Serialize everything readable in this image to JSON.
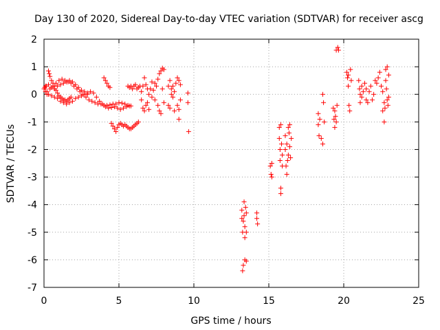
{
  "chart_data": {
    "type": "scatter",
    "title": "Day 130 of 2020, Sidereal Day-to-day VTEC variation (SDTVAR) for receiver ascg",
    "xlabel": "GPS time / hours",
    "ylabel": "SDTVAR / TECUs",
    "xlim": [
      0,
      25
    ],
    "ylim": [
      -7,
      2
    ],
    "xticks": [
      "0",
      "5",
      "10",
      "15",
      "20",
      "25"
    ],
    "yticks": [
      "-7",
      "-6",
      "-5",
      "-4",
      "-3",
      "-2",
      "-1",
      "0",
      "1",
      "2"
    ],
    "grid": true,
    "marker": "plus",
    "color": "#ff0000",
    "series": [
      {
        "name": "SDTVAR",
        "points": [
          [
            0.0,
            0.2
          ],
          [
            0.05,
            0.25
          ],
          [
            0.1,
            0.1
          ],
          [
            0.15,
            0.3
          ],
          [
            0.2,
            0.0
          ],
          [
            0.3,
            0.85
          ],
          [
            0.35,
            0.75
          ],
          [
            0.4,
            0.65
          ],
          [
            0.5,
            0.5
          ],
          [
            0.6,
            0.4
          ],
          [
            0.7,
            0.3
          ],
          [
            0.8,
            0.15
          ],
          [
            0.9,
            0.05
          ],
          [
            1.0,
            -0.05
          ],
          [
            1.1,
            -0.1
          ],
          [
            1.2,
            -0.15
          ],
          [
            1.3,
            -0.2
          ],
          [
            1.4,
            -0.2
          ],
          [
            1.5,
            -0.25
          ],
          [
            1.6,
            -0.2
          ],
          [
            1.7,
            -0.15
          ],
          [
            1.8,
            -0.1
          ],
          [
            0.2,
            0.1
          ],
          [
            0.4,
            0.2
          ],
          [
            0.6,
            0.3
          ],
          [
            0.8,
            0.4
          ],
          [
            1.0,
            0.5
          ],
          [
            1.2,
            0.55
          ],
          [
            1.4,
            0.5
          ],
          [
            1.6,
            0.45
          ],
          [
            1.8,
            0.4
          ],
          [
            2.0,
            0.3
          ],
          [
            2.2,
            0.2
          ],
          [
            2.4,
            0.1
          ],
          [
            2.6,
            0.0
          ],
          [
            2.8,
            -0.1
          ],
          [
            3.0,
            -0.2
          ],
          [
            3.2,
            -0.25
          ],
          [
            3.4,
            -0.3
          ],
          [
            3.6,
            -0.35
          ],
          [
            3.8,
            -0.35
          ],
          [
            4.0,
            -0.4
          ],
          [
            4.2,
            -0.4
          ],
          [
            4.4,
            -0.38
          ],
          [
            4.6,
            -0.35
          ],
          [
            4.8,
            -0.35
          ],
          [
            5.0,
            -0.3
          ],
          [
            5.2,
            -0.32
          ],
          [
            5.4,
            -0.35
          ],
          [
            5.6,
            -0.4
          ],
          [
            5.8,
            -0.42
          ],
          [
            0.3,
            0.0
          ],
          [
            0.5,
            -0.05
          ],
          [
            0.7,
            -0.1
          ],
          [
            0.9,
            -0.15
          ],
          [
            1.1,
            -0.25
          ],
          [
            1.3,
            -0.3
          ],
          [
            1.5,
            -0.35
          ],
          [
            1.7,
            -0.3
          ],
          [
            1.9,
            -0.25
          ],
          [
            2.1,
            -0.15
          ],
          [
            2.3,
            -0.1
          ],
          [
            2.5,
            -0.05
          ],
          [
            2.7,
            0.0
          ],
          [
            2.9,
            0.05
          ],
          [
            3.1,
            0.1
          ],
          [
            3.3,
            0.05
          ],
          [
            3.5,
            -0.1
          ],
          [
            3.7,
            -0.25
          ],
          [
            3.9,
            -0.35
          ],
          [
            4.1,
            -0.45
          ],
          [
            4.3,
            -0.5
          ],
          [
            4.5,
            -0.48
          ],
          [
            4.7,
            -0.45
          ],
          [
            4.9,
            -0.5
          ],
          [
            5.1,
            -0.55
          ],
          [
            5.3,
            -0.5
          ],
          [
            5.5,
            -0.45
          ],
          [
            5.7,
            -0.42
          ],
          [
            0.1,
            0.3
          ],
          [
            0.3,
            0.35
          ],
          [
            0.5,
            0.25
          ],
          [
            0.7,
            0.2
          ],
          [
            0.9,
            0.3
          ],
          [
            1.1,
            0.35
          ],
          [
            1.3,
            0.4
          ],
          [
            1.5,
            0.45
          ],
          [
            1.7,
            0.5
          ],
          [
            1.9,
            0.45
          ],
          [
            2.1,
            0.35
          ],
          [
            2.3,
            0.25
          ],
          [
            2.5,
            0.15
          ],
          [
            2.7,
            0.1
          ],
          [
            2.9,
            0.0
          ],
          [
            4.0,
            0.6
          ],
          [
            4.1,
            0.5
          ],
          [
            4.2,
            0.4
          ],
          [
            4.3,
            0.3
          ],
          [
            4.4,
            0.25
          ],
          [
            4.5,
            -1.05
          ],
          [
            4.6,
            -1.15
          ],
          [
            4.7,
            -1.25
          ],
          [
            4.8,
            -1.35
          ],
          [
            4.9,
            -1.2
          ],
          [
            5.0,
            -1.1
          ],
          [
            5.1,
            -1.05
          ],
          [
            5.2,
            -1.1
          ],
          [
            5.3,
            -1.15
          ],
          [
            5.4,
            -1.1
          ],
          [
            5.5,
            -1.15
          ],
          [
            5.6,
            -1.2
          ],
          [
            5.7,
            -1.25
          ],
          [
            5.8,
            -1.25
          ],
          [
            5.9,
            -1.2
          ],
          [
            6.0,
            -1.15
          ],
          [
            6.1,
            -1.1
          ],
          [
            6.2,
            -1.05
          ],
          [
            6.3,
            -1.0
          ],
          [
            5.6,
            0.3
          ],
          [
            5.7,
            0.25
          ],
          [
            5.8,
            0.3
          ],
          [
            5.9,
            0.2
          ],
          [
            6.0,
            0.3
          ],
          [
            6.1,
            0.35
          ],
          [
            6.2,
            0.2
          ],
          [
            6.3,
            0.25
          ],
          [
            6.4,
            0.3
          ],
          [
            6.5,
            0.1
          ],
          [
            6.5,
            -0.2
          ],
          [
            6.6,
            -0.5
          ],
          [
            6.6,
            0.3
          ],
          [
            6.7,
            -0.6
          ],
          [
            6.7,
            0.6
          ],
          [
            6.8,
            0.35
          ],
          [
            6.8,
            -0.4
          ],
          [
            6.9,
            0.2
          ],
          [
            6.9,
            -0.3
          ],
          [
            7.0,
            0.0
          ],
          [
            7.0,
            -0.55
          ],
          [
            7.1,
            0.2
          ],
          [
            7.2,
            -0.1
          ],
          [
            7.2,
            0.45
          ],
          [
            7.3,
            0.15
          ],
          [
            7.4,
            0.4
          ],
          [
            7.4,
            -0.2
          ],
          [
            7.5,
            0.3
          ],
          [
            7.6,
            0.55
          ],
          [
            7.6,
            -0.4
          ],
          [
            7.7,
            0.75
          ],
          [
            7.7,
            -0.6
          ],
          [
            7.8,
            0.85
          ],
          [
            7.8,
            -0.7
          ],
          [
            7.9,
            0.95
          ],
          [
            7.9,
            0.2
          ],
          [
            8.0,
            0.9
          ],
          [
            8.0,
            -0.3
          ],
          [
            8.3,
            0.3
          ],
          [
            8.3,
            -0.4
          ],
          [
            8.4,
            0.5
          ],
          [
            8.4,
            -0.5
          ],
          [
            8.5,
            0.2
          ],
          [
            8.5,
            0.0
          ],
          [
            8.6,
            -0.1
          ],
          [
            8.6,
            0.3
          ],
          [
            8.7,
            0.1
          ],
          [
            8.7,
            -0.6
          ],
          [
            8.8,
            0.4
          ],
          [
            8.9,
            0.6
          ],
          [
            8.9,
            -0.4
          ],
          [
            9.0,
            0.5
          ],
          [
            9.0,
            -0.9
          ],
          [
            9.0,
            -0.55
          ],
          [
            9.1,
            0.35
          ],
          [
            9.1,
            -0.2
          ],
          [
            9.6,
            0.05
          ],
          [
            9.6,
            -0.3
          ],
          [
            9.65,
            -1.35
          ],
          [
            13.2,
            -4.5
          ],
          [
            13.2,
            -4.2
          ],
          [
            13.25,
            -5.0
          ],
          [
            13.25,
            -6.4
          ],
          [
            13.3,
            -4.6
          ],
          [
            13.3,
            -6.2
          ],
          [
            13.35,
            -4.4
          ],
          [
            13.35,
            -3.9
          ],
          [
            13.4,
            -6.0
          ],
          [
            13.4,
            -5.2
          ],
          [
            13.4,
            -4.8
          ],
          [
            13.45,
            -4.1
          ],
          [
            13.5,
            -5.0
          ],
          [
            13.5,
            -6.05
          ],
          [
            13.5,
            -4.3
          ],
          [
            14.2,
            -4.3
          ],
          [
            14.25,
            -4.7
          ],
          [
            14.2,
            -4.5
          ],
          [
            15.1,
            -2.6
          ],
          [
            15.15,
            -2.9
          ],
          [
            15.2,
            -3.0
          ],
          [
            15.2,
            -2.5
          ],
          [
            15.7,
            -1.2
          ],
          [
            15.7,
            -1.6
          ],
          [
            15.75,
            -2.0
          ],
          [
            15.75,
            -2.4
          ],
          [
            15.8,
            -3.4
          ],
          [
            15.8,
            -3.6
          ],
          [
            15.8,
            -1.1
          ],
          [
            15.85,
            -1.8
          ],
          [
            15.9,
            -2.2
          ],
          [
            15.9,
            -2.6
          ],
          [
            16.1,
            -1.5
          ],
          [
            16.1,
            -2.0
          ],
          [
            16.15,
            -2.6
          ],
          [
            16.2,
            -2.9
          ],
          [
            16.2,
            -1.8
          ],
          [
            16.25,
            -2.4
          ],
          [
            16.3,
            -1.2
          ],
          [
            16.3,
            -2.2
          ],
          [
            16.35,
            -1.4
          ],
          [
            16.4,
            -1.1
          ],
          [
            16.4,
            -1.9
          ],
          [
            16.45,
            -2.3
          ],
          [
            16.5,
            -1.6
          ],
          [
            18.3,
            -0.7
          ],
          [
            18.3,
            -1.1
          ],
          [
            18.35,
            -1.5
          ],
          [
            18.4,
            -0.9
          ],
          [
            18.5,
            -1.6
          ],
          [
            18.6,
            0.0
          ],
          [
            18.6,
            -1.8
          ],
          [
            18.65,
            -0.3
          ],
          [
            18.7,
            -1.0
          ],
          [
            19.3,
            -0.5
          ],
          [
            19.35,
            -0.9
          ],
          [
            19.4,
            -1.2
          ],
          [
            19.4,
            -0.6
          ],
          [
            19.45,
            -0.8
          ],
          [
            19.5,
            -1.0
          ],
          [
            19.55,
            -0.4
          ],
          [
            19.5,
            1.6
          ],
          [
            19.6,
            1.7
          ],
          [
            19.65,
            1.6
          ],
          [
            20.2,
            0.8
          ],
          [
            20.25,
            0.6
          ],
          [
            20.3,
            0.7
          ],
          [
            20.3,
            0.3
          ],
          [
            20.35,
            -0.4
          ],
          [
            20.4,
            -0.6
          ],
          [
            20.45,
            0.9
          ],
          [
            20.5,
            0.5
          ],
          [
            21.0,
            0.5
          ],
          [
            21.05,
            0.2
          ],
          [
            21.1,
            0.0
          ],
          [
            21.1,
            -0.3
          ],
          [
            21.2,
            0.3
          ],
          [
            21.2,
            -0.1
          ],
          [
            21.3,
            0.1
          ],
          [
            21.4,
            0.4
          ],
          [
            21.5,
            -0.2
          ],
          [
            21.5,
            0.2
          ],
          [
            21.6,
            -0.3
          ],
          [
            21.7,
            0.1
          ],
          [
            21.8,
            0.3
          ],
          [
            21.9,
            -0.2
          ],
          [
            22.0,
            0.0
          ],
          [
            22.1,
            0.5
          ],
          [
            22.2,
            0.4
          ],
          [
            22.3,
            0.6
          ],
          [
            22.4,
            0.8
          ],
          [
            22.5,
            0.3
          ],
          [
            22.6,
            0.1
          ],
          [
            22.6,
            -0.6
          ],
          [
            22.7,
            -0.3
          ],
          [
            22.7,
            -1.0
          ],
          [
            22.75,
            -0.5
          ],
          [
            22.8,
            0.5
          ],
          [
            22.8,
            0.9
          ],
          [
            22.85,
            0.2
          ],
          [
            22.9,
            -0.2
          ],
          [
            22.9,
            1.0
          ],
          [
            22.95,
            -0.4
          ],
          [
            23.0,
            0.7
          ],
          [
            23.0,
            -0.1
          ]
        ]
      }
    ]
  }
}
